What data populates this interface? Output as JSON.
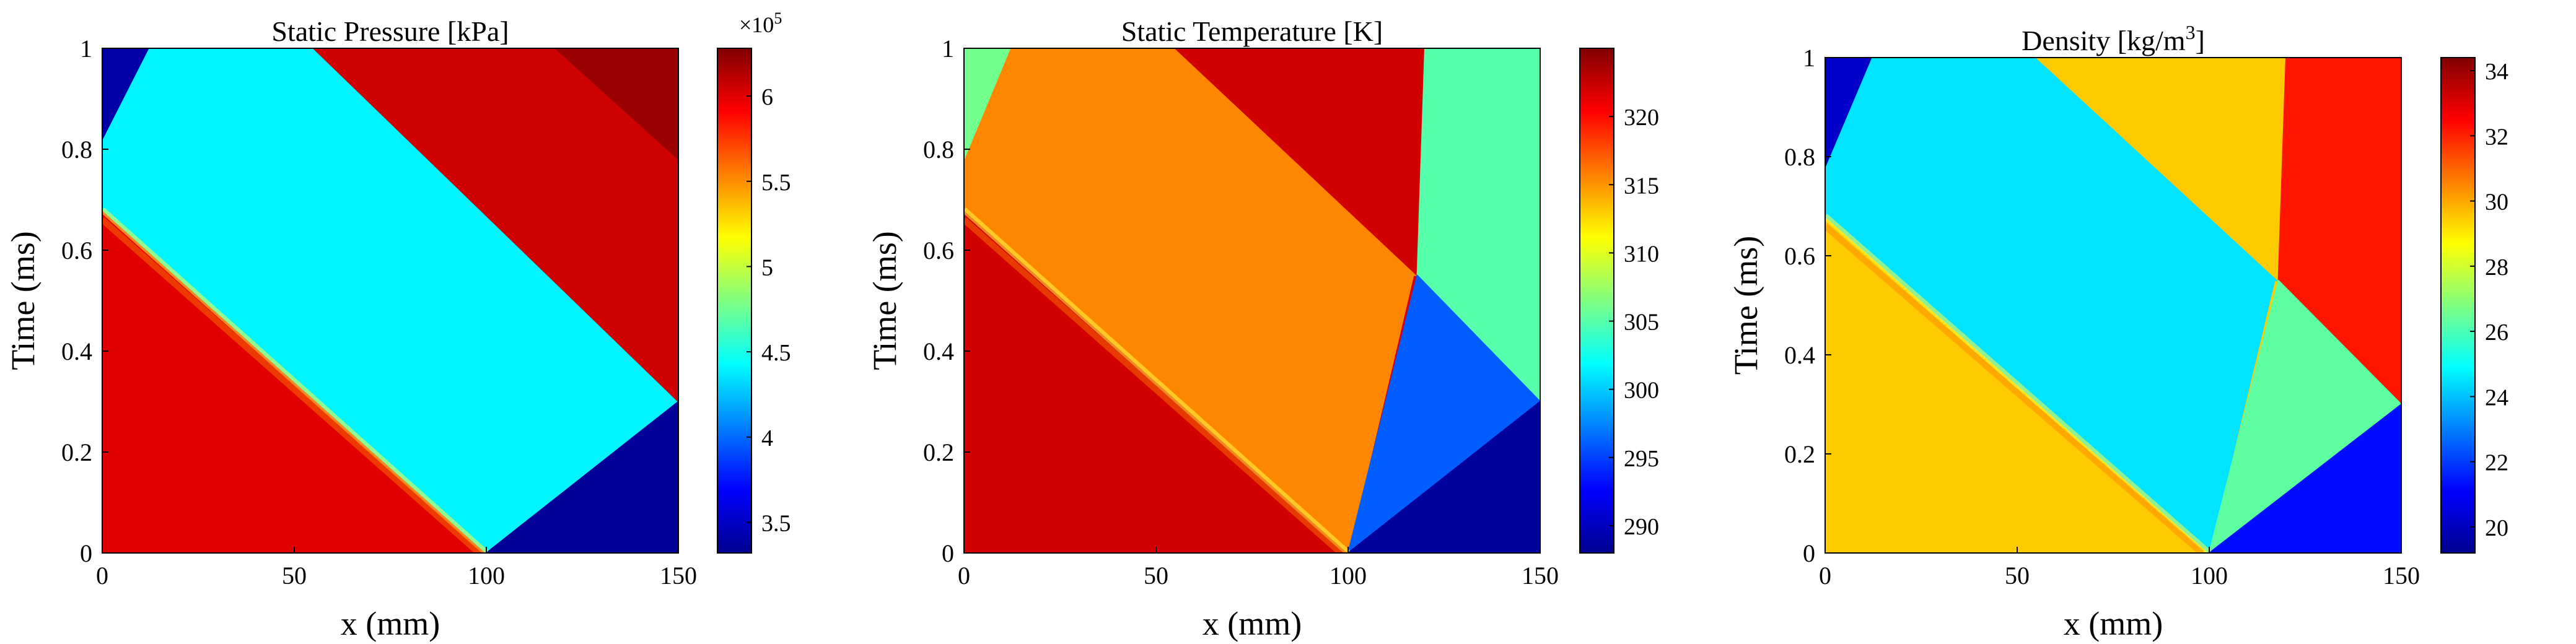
{
  "colors": {
    "jet": [
      "#00008f",
      "#0000ff",
      "#0080ff",
      "#00ffff",
      "#80ff80",
      "#ffff00",
      "#ff8000",
      "#ff0000",
      "#800000"
    ]
  },
  "chart_data": [
    {
      "type": "heatmap",
      "title": "Static Pressure [kPa]",
      "xlabel": "x (mm)",
      "ylabel": "Time (ms)",
      "xlim": [
        0,
        150
      ],
      "ylim": [
        0,
        1
      ],
      "xticks": [
        "0",
        "50",
        "100",
        "150"
      ],
      "yticks": [
        "0",
        "0.2",
        "0.4",
        "0.6",
        "0.8",
        "1"
      ],
      "colorbar": {
        "label": "",
        "exponent_label": "×10",
        "exponent": "5",
        "range": [
          3.32,
          6.28
        ],
        "ticks": [
          "3.5",
          "4",
          "4.5",
          "5",
          "5.5",
          "6"
        ]
      },
      "regions": [
        {
          "name": "driven-gas-ahead",
          "value": 6.0,
          "points": [
            [
              0,
              0
            ],
            [
              100,
              0
            ],
            [
              0,
              0.68
            ]
          ]
        },
        {
          "name": "post-wave",
          "value": 4.4,
          "points": [
            [
              100,
              0
            ],
            [
              150,
              0.3
            ],
            [
              55,
              1
            ],
            [
              12,
              1
            ],
            [
              0,
              0.82
            ],
            [
              0,
              0.68
            ]
          ]
        },
        {
          "name": "driver-reflected",
          "value": 6.05,
          "points": [
            [
              150,
              0.3
            ],
            [
              150,
              1
            ],
            [
              55,
              1
            ]
          ]
        },
        {
          "name": "upper-right-shock",
          "value": 6.2,
          "points": [
            [
              118,
              1
            ],
            [
              150,
              1
            ],
            [
              150,
              0.78
            ]
          ]
        },
        {
          "name": "low-pressure-right",
          "value": 3.35,
          "points": [
            [
              100,
              0
            ],
            [
              150,
              0
            ],
            [
              150,
              0.3
            ]
          ]
        },
        {
          "name": "expansion-left",
          "value": 3.4,
          "points": [
            [
              0,
              0.82
            ],
            [
              12,
              1
            ],
            [
              0,
              1
            ]
          ]
        }
      ]
    },
    {
      "type": "heatmap",
      "title": "Static Temperature [K]",
      "xlabel": "x (mm)",
      "ylabel": "Time (ms)",
      "xlim": [
        0,
        150
      ],
      "ylim": [
        0,
        1
      ],
      "xticks": [
        "0",
        "50",
        "100",
        "150"
      ],
      "yticks": [
        "0",
        "0.2",
        "0.4",
        "0.6",
        "0.8",
        "1"
      ],
      "colorbar": {
        "label": "",
        "range": [
          288,
          325
        ],
        "ticks": [
          "290",
          "295",
          "300",
          "305",
          "310",
          "315",
          "320"
        ]
      },
      "regions": [
        {
          "name": "hot-lower-left",
          "value": 322,
          "points": [
            [
              0,
              0
            ],
            [
              100,
              0
            ],
            [
              0,
              0.68
            ]
          ]
        },
        {
          "name": "mid-band",
          "value": 315.5,
          "points": [
            [
              100,
              0
            ],
            [
              117,
              0.55
            ],
            [
              118,
              0.55
            ],
            [
              55,
              1
            ],
            [
              12,
              1
            ],
            [
              0,
              0.78
            ],
            [
              0,
              0.68
            ]
          ]
        },
        {
          "name": "hot-upper-wedge",
          "value": 322,
          "points": [
            [
              55,
              1
            ],
            [
              118,
              1
            ],
            [
              118,
              0.55
            ]
          ]
        },
        {
          "name": "contact-right",
          "value": 305,
          "points": [
            [
              118,
              0.55
            ],
            [
              150,
              0.3
            ],
            [
              150,
              1
            ],
            [
              120,
              1
            ]
          ]
        },
        {
          "name": "cold-wedge",
          "value": 296,
          "points": [
            [
              100,
              0
            ],
            [
              150,
              0.3
            ],
            [
              118,
              0.55
            ]
          ]
        },
        {
          "name": "coldest-right",
          "value": 288.5,
          "points": [
            [
              100,
              0
            ],
            [
              150,
              0
            ],
            [
              150,
              0.3
            ]
          ]
        },
        {
          "name": "left-expansion",
          "value": 306,
          "points": [
            [
              0,
              0.78
            ],
            [
              12,
              1
            ],
            [
              0,
              1
            ]
          ]
        }
      ]
    },
    {
      "type": "heatmap",
      "title": "Density [kg/m",
      "title_sup": "3",
      "title_end": "]",
      "xlabel": "x (mm)",
      "ylabel": "Time (ms)",
      "xlim": [
        0,
        150
      ],
      "ylim": [
        0,
        1
      ],
      "xticks": [
        "0",
        "50",
        "100",
        "150"
      ],
      "yticks": [
        "0",
        "0.2",
        "0.4",
        "0.6",
        "0.8",
        "1"
      ],
      "colorbar": {
        "label": "",
        "range": [
          19.2,
          34.4
        ],
        "ticks": [
          "20",
          "22",
          "24",
          "26",
          "28",
          "30",
          "32",
          "34"
        ]
      },
      "regions": [
        {
          "name": "lower-left",
          "value": 29.5,
          "points": [
            [
              0,
              0
            ],
            [
              100,
              0
            ],
            [
              0,
              0.68
            ]
          ]
        },
        {
          "name": "mid-band",
          "value": 24.5,
          "points": [
            [
              100,
              0
            ],
            [
              117,
              0.55
            ],
            [
              118,
              0.55
            ],
            [
              55,
              1
            ],
            [
              12,
              1
            ],
            [
              0,
              0.78
            ],
            [
              0,
              0.68
            ]
          ]
        },
        {
          "name": "upper-wedge",
          "value": 29.5,
          "points": [
            [
              55,
              1
            ],
            [
              118,
              1
            ],
            [
              118,
              0.55
            ]
          ]
        },
        {
          "name": "dense-right",
          "value": 32.2,
          "points": [
            [
              118,
              0.55
            ],
            [
              150,
              0.3
            ],
            [
              150,
              1
            ],
            [
              120,
              1
            ]
          ]
        },
        {
          "name": "mid-wedge",
          "value": 26.3,
          "points": [
            [
              100,
              0
            ],
            [
              150,
              0.3
            ],
            [
              118,
              0.55
            ]
          ]
        },
        {
          "name": "low-right",
          "value": 21.3,
          "points": [
            [
              100,
              0
            ],
            [
              150,
              0
            ],
            [
              150,
              0.3
            ]
          ]
        },
        {
          "name": "left-expansion",
          "value": 20.2,
          "points": [
            [
              0,
              0.78
            ],
            [
              12,
              1
            ],
            [
              0,
              1
            ]
          ]
        }
      ]
    }
  ]
}
